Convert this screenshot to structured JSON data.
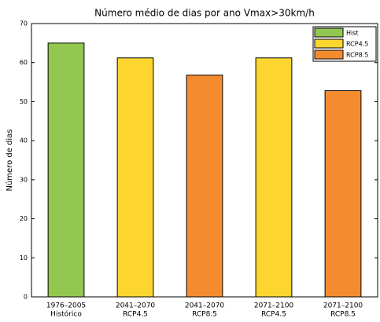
{
  "chart_data": {
    "type": "bar",
    "title": "Número médio de dias por ano Vmax>30km/h",
    "y_label": "Número de dias",
    "categories": [
      [
        "1976–2005",
        "Histórico"
      ],
      [
        "2041–2070",
        "RCP4.5"
      ],
      [
        "2041–2070",
        "RCP8.5"
      ],
      [
        "2071–2100",
        "RCP4.5"
      ],
      [
        "2071–2100",
        "RCP8.5"
      ]
    ],
    "series": [
      {
        "name": "Hist",
        "color": "#92c84f",
        "values": [
          65,
          null,
          null,
          null,
          null
        ]
      },
      {
        "name": "RCP4.5",
        "color": "#fcd62f",
        "values": [
          null,
          61.2,
          null,
          61.2,
          null
        ]
      },
      {
        "name": "RCP8.5",
        "color": "#f58b2f",
        "values": [
          null,
          null,
          56.8,
          null,
          52.8
        ]
      }
    ],
    "ylim": [
      0,
      70
    ],
    "yticks": [
      0,
      10,
      20,
      30,
      40,
      50,
      60,
      70
    ],
    "legend": "upper right",
    "grid": false
  }
}
